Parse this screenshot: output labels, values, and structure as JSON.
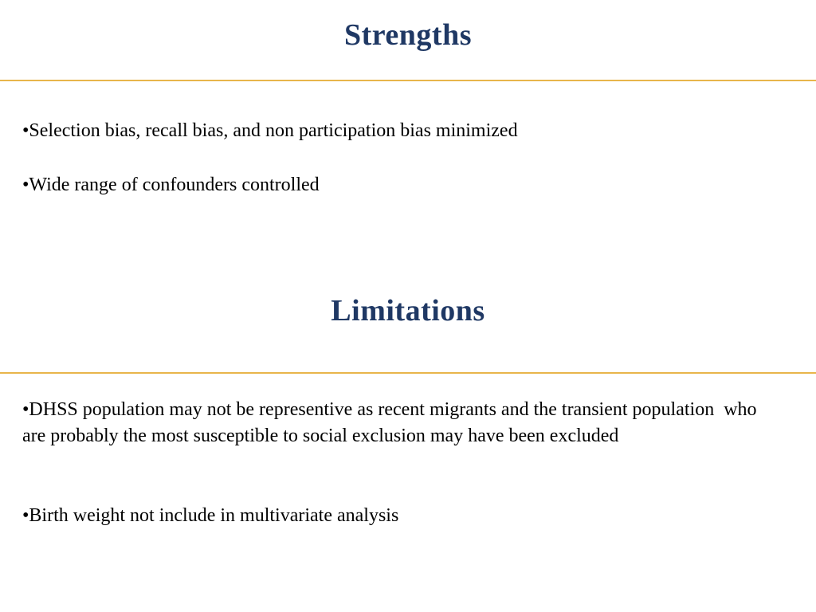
{
  "slide": {
    "background_color": "#ffffff",
    "title_color": "#1F3864",
    "divider_color": "#E8B54B",
    "body_text_color": "#000000",
    "strengths": {
      "title": "Strengths",
      "bullets": [
        "•Selection bias, recall bias, and non participation bias minimized",
        "•Wide range of confounders controlled"
      ]
    },
    "limitations": {
      "title": "Limitations",
      "bullets": [
        "•DHSS population may not be representive as recent migrants and the transient population  who are probably the most susceptible to social exclusion may have been excluded",
        "•Birth weight not include in multivariate analysis"
      ]
    }
  }
}
